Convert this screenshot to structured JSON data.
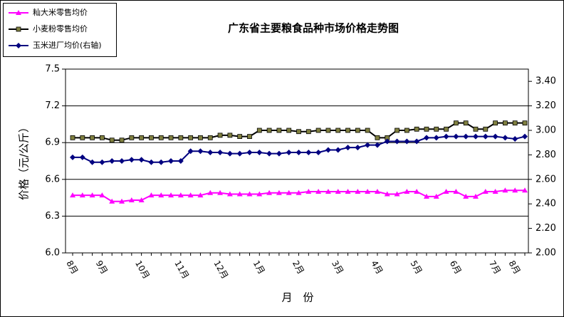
{
  "chart_data": {
    "type": "line",
    "title": "广东省主要粮食品种市场价格走势图",
    "ylabel": "价格（元/公斤）",
    "xlabel": "月　份",
    "categories": [
      "8月",
      null,
      null,
      "9月",
      null,
      null,
      null,
      "10月",
      null,
      null,
      null,
      "11月",
      null,
      null,
      null,
      "12月",
      null,
      null,
      null,
      "1月",
      null,
      null,
      null,
      "2月",
      null,
      null,
      null,
      "3月",
      null,
      null,
      null,
      "4月",
      null,
      null,
      null,
      "5月",
      null,
      null,
      null,
      "6月",
      null,
      null,
      null,
      "7月",
      null,
      "8月",
      null
    ],
    "ylim": [
      6.0,
      7.5
    ],
    "yticks": [
      {
        "value": 6.0,
        "label": "6.0"
      },
      6.3,
      6.6,
      6.9,
      7.2,
      7.5
    ],
    "y2lim": [
      2.0,
      3.5
    ],
    "y2ticks": [
      {
        "value": 2.0,
        "label": "2.00"
      },
      {
        "value": 2.2,
        "label": "2.20"
      },
      {
        "value": 2.4,
        "label": "2.40"
      },
      {
        "value": 2.6,
        "label": "2.60"
      },
      {
        "value": 2.8,
        "label": "2.80"
      },
      {
        "value": 3.0,
        "label": "3.00"
      },
      {
        "value": 3.2,
        "label": "3.20"
      },
      {
        "value": 3.4,
        "label": "3.40"
      }
    ],
    "grid": true,
    "legend": "upper left",
    "series": [
      {
        "name": "籼大米零售均价",
        "color": "#ff00ff",
        "marker": "triangle",
        "marker_color": "#ff00ff",
        "values": [
          6.47,
          6.47,
          6.47,
          6.47,
          6.42,
          6.42,
          6.43,
          6.43,
          6.47,
          6.47,
          6.47,
          6.47,
          6.47,
          6.47,
          6.49,
          6.49,
          6.48,
          6.48,
          6.48,
          6.48,
          6.49,
          6.49,
          6.49,
          6.49,
          6.5,
          6.5,
          6.5,
          6.5,
          6.5,
          6.5,
          6.5,
          6.5,
          6.48,
          6.48,
          6.5,
          6.5,
          6.46,
          6.46,
          6.5,
          6.5,
          6.46,
          6.46,
          6.5,
          6.5,
          6.51,
          6.51,
          6.51
        ]
      },
      {
        "name": "小麦粉零售均价",
        "color": "#000000",
        "marker": "square",
        "marker_color": "#808040",
        "values": [
          6.94,
          6.94,
          6.94,
          6.94,
          6.92,
          6.92,
          6.94,
          6.94,
          6.94,
          6.94,
          6.94,
          6.94,
          6.94,
          6.94,
          6.94,
          6.96,
          6.96,
          6.95,
          6.95,
          7.0,
          7.0,
          7.0,
          7.0,
          6.99,
          6.99,
          7.0,
          7.0,
          7.0,
          7.0,
          7.0,
          7.0,
          6.94,
          6.94,
          7.0,
          7.0,
          7.01,
          7.01,
          7.01,
          7.01,
          7.06,
          7.06,
          7.01,
          7.01,
          7.06,
          7.06,
          7.06,
          7.06
        ]
      },
      {
        "name": "玉米进厂均价(右轴)",
        "color": "#000080",
        "marker": "diamond",
        "marker_color": "#000080",
        "axis": "y2",
        "values": [
          2.78,
          2.78,
          2.74,
          2.74,
          2.75,
          2.75,
          2.76,
          2.76,
          2.74,
          2.74,
          2.75,
          2.75,
          2.83,
          2.83,
          2.82,
          2.82,
          2.81,
          2.81,
          2.82,
          2.82,
          2.81,
          2.81,
          2.82,
          2.82,
          2.82,
          2.82,
          2.84,
          2.84,
          2.86,
          2.86,
          2.88,
          2.88,
          2.91,
          2.91,
          2.91,
          2.91,
          2.94,
          2.94,
          2.95,
          2.95,
          2.95,
          2.95,
          2.95,
          2.95,
          2.94,
          2.93,
          2.95
        ]
      }
    ]
  }
}
